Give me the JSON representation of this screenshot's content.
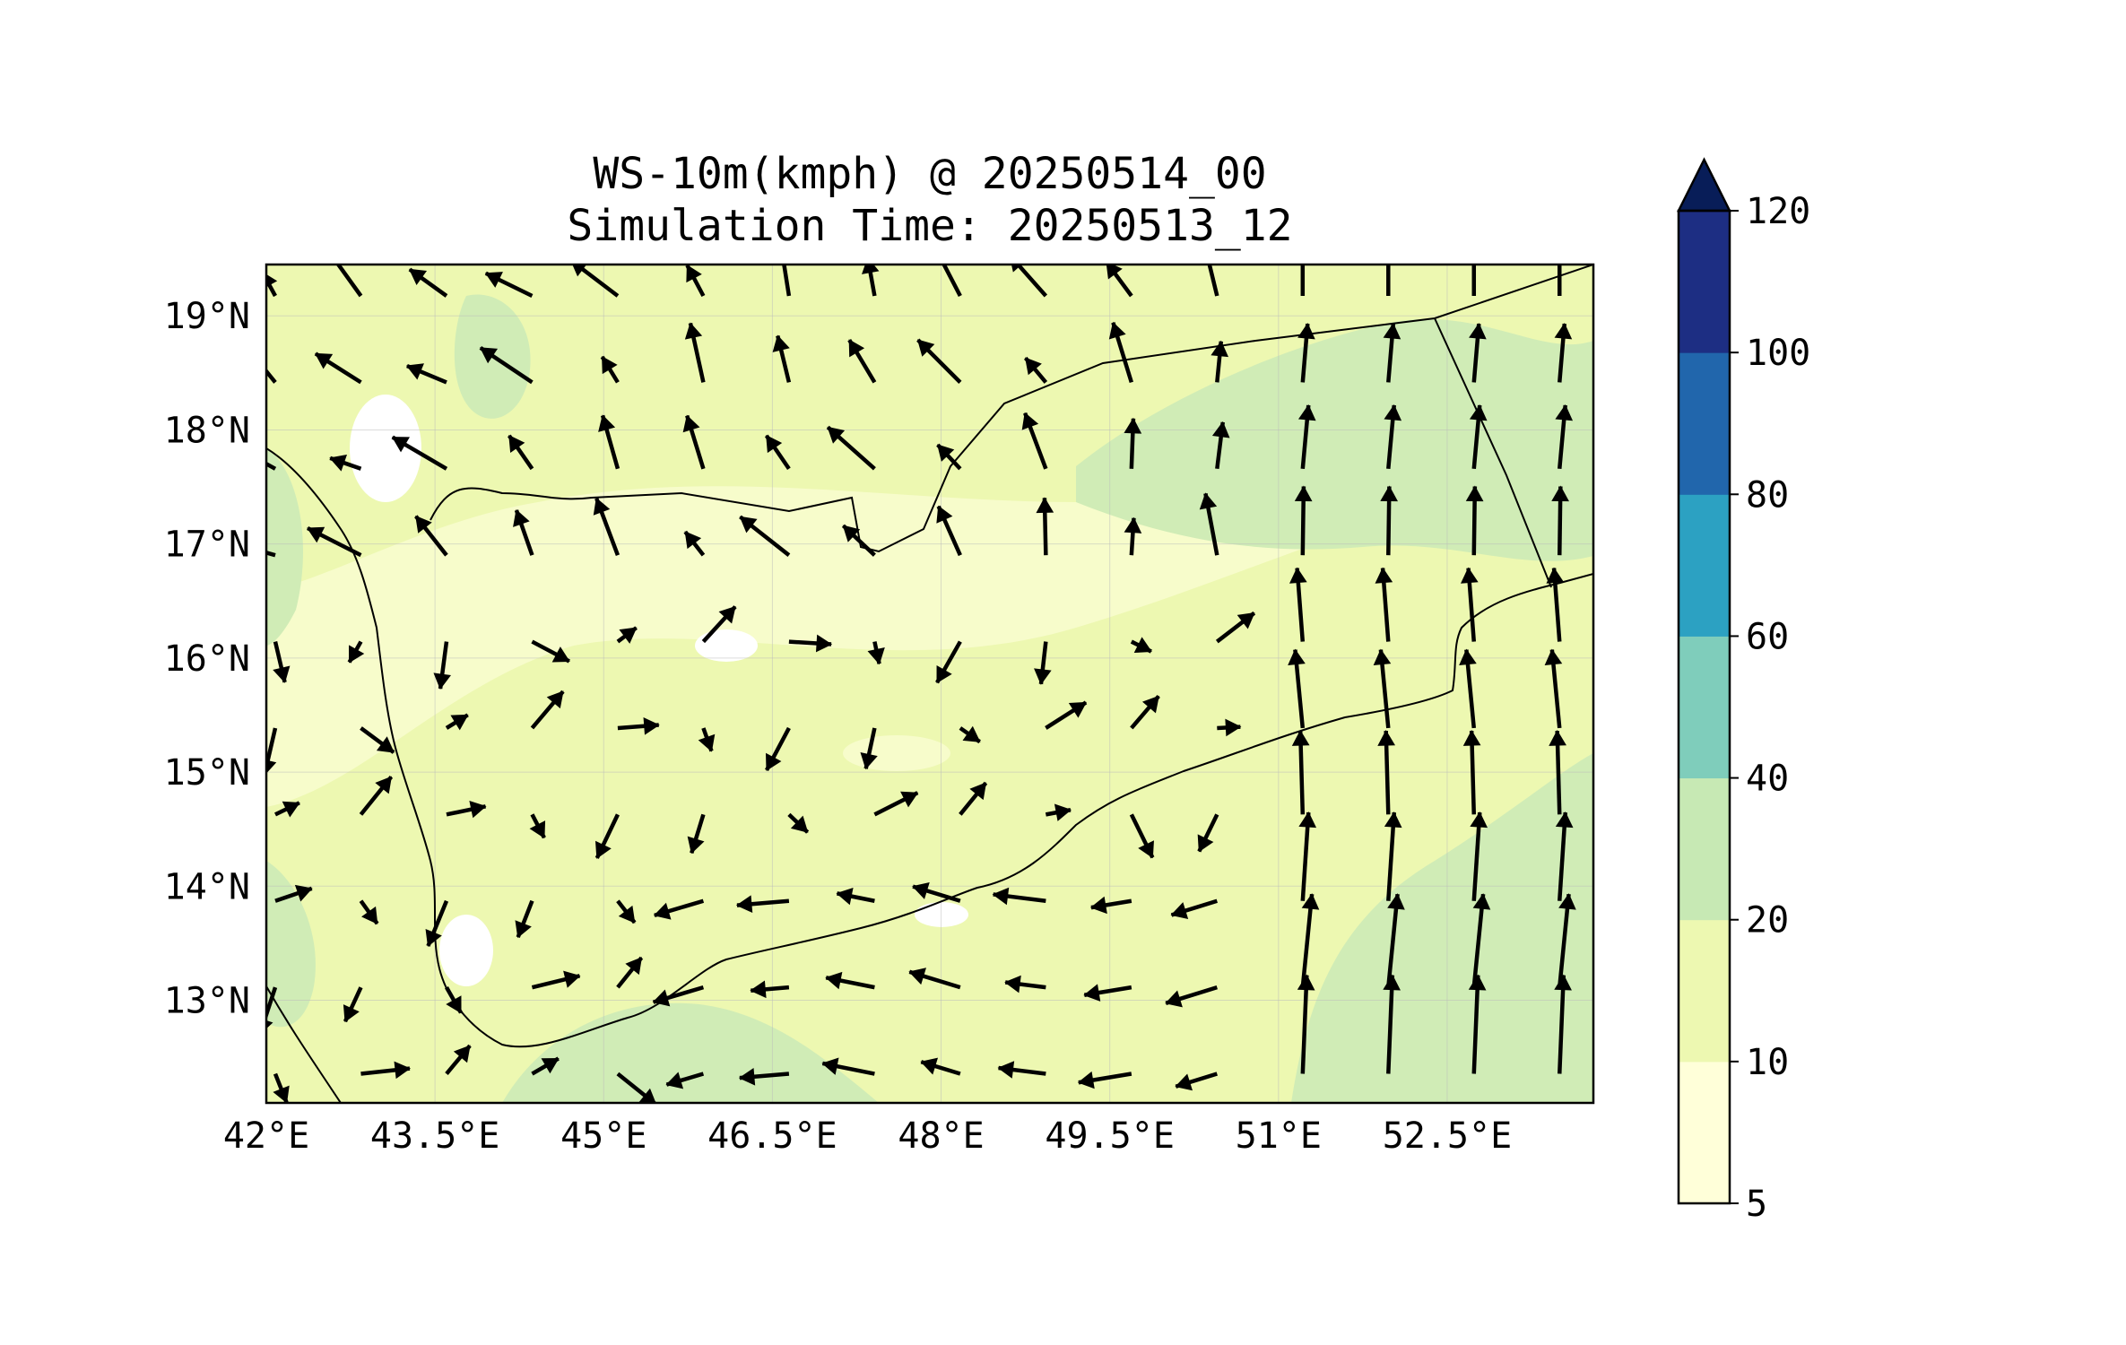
{
  "title": {
    "line1": "WS-10m(kmph) @ 20250514_00",
    "line2": "Simulation Time: 20250513_12"
  },
  "map": {
    "lon_range": [
      42.0,
      53.8
    ],
    "lat_range": [
      12.1,
      19.45
    ],
    "x_ticks": [
      {
        "lon": 42.0,
        "label": "42°E"
      },
      {
        "lon": 43.5,
        "label": "43.5°E"
      },
      {
        "lon": 45.0,
        "label": "45°E"
      },
      {
        "lon": 46.5,
        "label": "46.5°E"
      },
      {
        "lon": 48.0,
        "label": "48°E"
      },
      {
        "lon": 49.5,
        "label": "49.5°E"
      },
      {
        "lon": 51.0,
        "label": "51°E"
      },
      {
        "lon": 52.5,
        "label": "52.5°E"
      }
    ],
    "y_ticks": [
      {
        "lat": 19.0,
        "label": "19°N"
      },
      {
        "lat": 18.0,
        "label": "18°N"
      },
      {
        "lat": 17.0,
        "label": "17°N"
      },
      {
        "lat": 16.0,
        "label": "16°N"
      },
      {
        "lat": 15.0,
        "label": "15°N"
      },
      {
        "lat": 14.0,
        "label": "14°N"
      },
      {
        "lat": 13.0,
        "label": "13°N"
      }
    ],
    "gridlines": true,
    "field_colors": {
      "background": "#f7fccb",
      "low": "#edf8b1",
      "mid": "#d0ecb6",
      "calm": "#ffffff"
    }
  },
  "colorbar": {
    "levels": [
      {
        "label": "5",
        "value": 5
      },
      {
        "label": "10",
        "value": 10
      },
      {
        "label": "20",
        "value": 20
      },
      {
        "label": "40",
        "value": 40
      },
      {
        "label": "60",
        "value": 60
      },
      {
        "label": "80",
        "value": 80
      },
      {
        "label": "100",
        "value": 100
      },
      {
        "label": "120",
        "value": 120
      }
    ],
    "colors": [
      "#ffffd9",
      "#edf8b1",
      "#c7e9b4",
      "#7fcdbb",
      "#2ca1c2",
      "#2166ac",
      "#1d2e83"
    ],
    "extend_color": "#081d58",
    "extend": "max"
  }
}
